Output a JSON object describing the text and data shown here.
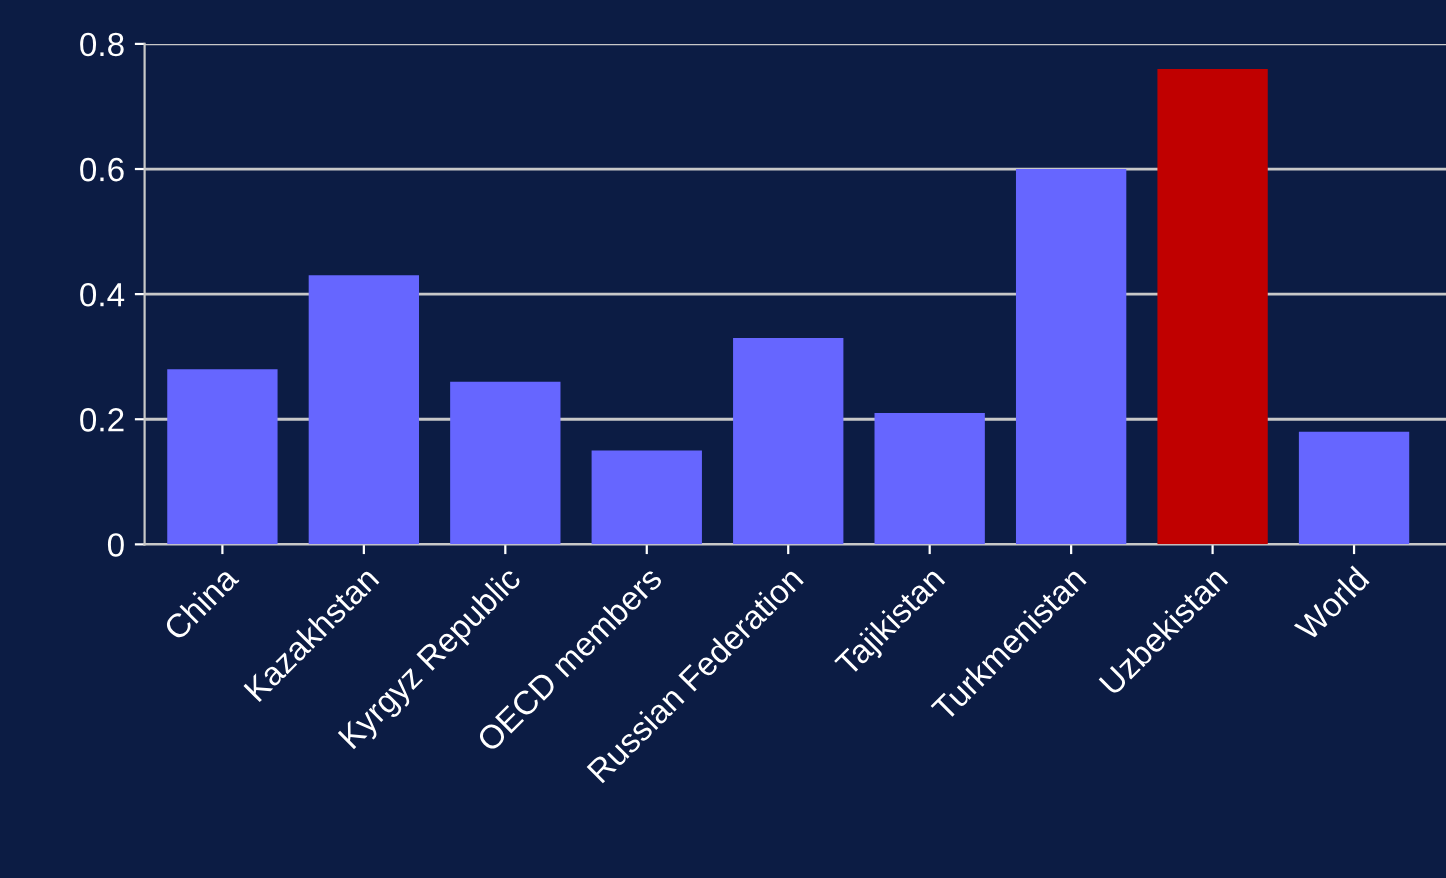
{
  "chart_data": {
    "type": "bar",
    "categories": [
      "China",
      "Kazakhstan",
      "Kyrgyz Republic",
      "OECD members",
      "Russian Federation",
      "Tajikistan",
      "Turkmenistan",
      "Uzbekistan",
      "World"
    ],
    "values": [
      0.28,
      0.43,
      0.26,
      0.15,
      0.33,
      0.21,
      0.6,
      0.76,
      0.18
    ],
    "colors": [
      "#6666ff",
      "#6666ff",
      "#6666ff",
      "#6666ff",
      "#6666ff",
      "#6666ff",
      "#6666ff",
      "#c00000",
      "#6666ff"
    ],
    "ylim": [
      0,
      0.8
    ],
    "yticks": [
      {
        "value": 0,
        "label": "0"
      },
      0.2,
      0.4,
      0.6,
      0.8
    ],
    "grid": "y"
  }
}
